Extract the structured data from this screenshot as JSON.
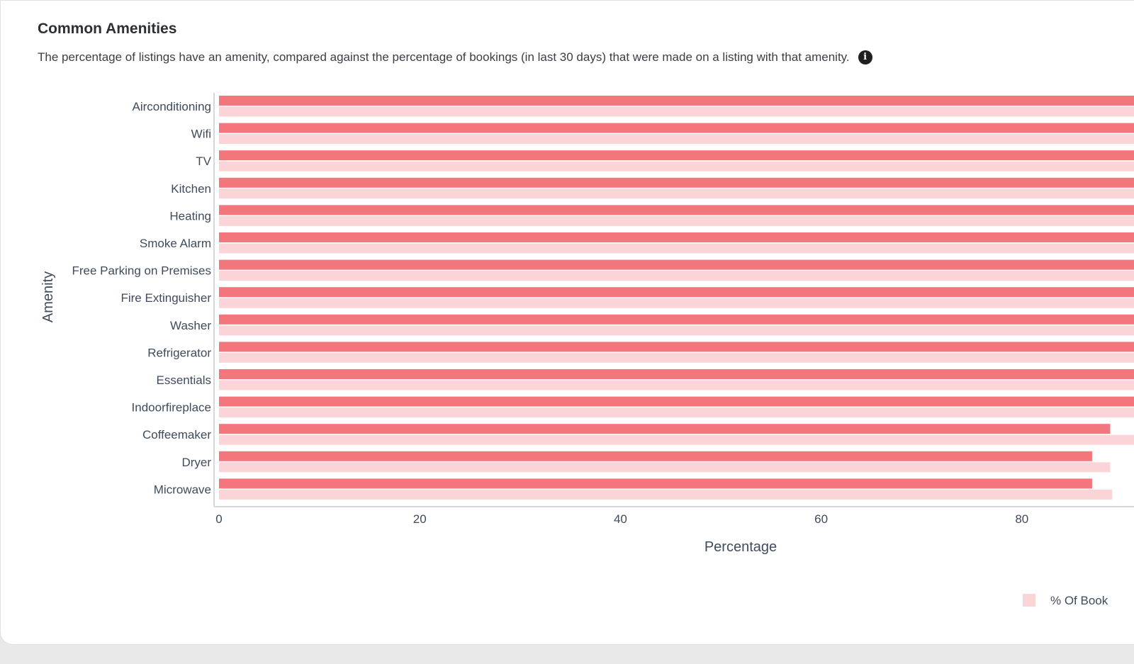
{
  "card": {
    "title": "Common Amenities",
    "subtitle": "The percentage of listings have an amenity, compared against the percentage of bookings (in last 30 days) that were made on a listing with that amenity.",
    "info_icon": "info-icon"
  },
  "colors": {
    "listings": "#f2767b",
    "bookings": "#fad4d7",
    "axis": "#d5d7dc"
  },
  "chart_data": {
    "type": "bar",
    "orientation": "horizontal",
    "xlabel": "Percentage",
    "ylabel": "Amenity",
    "xlim": [
      0,
      90
    ],
    "xticks": [
      0,
      20,
      40,
      60,
      80
    ],
    "categories": [
      "Airconditioning",
      "Wifi",
      "TV",
      "Kitchen",
      "Heating",
      "Smoke Alarm",
      "Free Parking on Premises",
      "Fire Extinguisher",
      "Washer",
      "Refrigerator",
      "Essentials",
      "Indoorfireplace",
      "Coffeemaker",
      "Dryer",
      "Microwave"
    ],
    "series": [
      {
        "color": "#f2767b",
        "values": [
          98,
          98,
          97,
          97,
          97,
          96,
          95,
          95,
          94,
          94,
          93,
          92,
          88.8,
          87,
          87
        ]
      },
      {
        "name": "% Of Book",
        "color": "#fad4d7",
        "values": [
          98,
          98,
          97,
          97,
          97,
          96,
          95,
          95,
          94,
          94,
          93,
          92,
          92,
          88.8,
          89
        ]
      }
    ],
    "legend_position": "bottom-right",
    "grid": false
  }
}
